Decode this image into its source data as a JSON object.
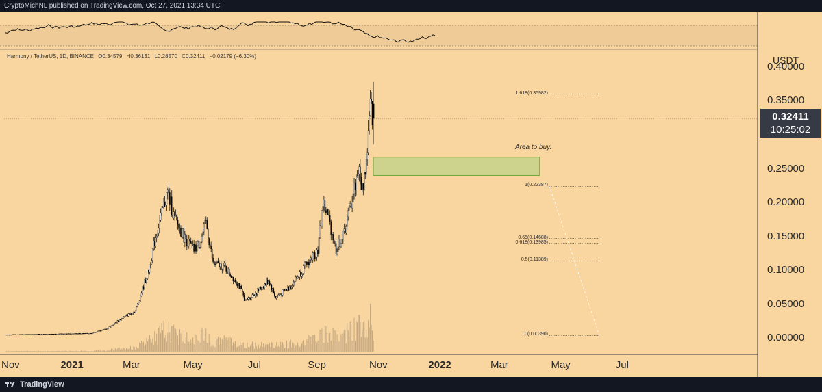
{
  "header": {
    "publisher_text": "CryptoMichNL published on TradingView.com, Oct 27, 2021 13:34 UTC"
  },
  "footer": {
    "brand": "TradingView"
  },
  "legend": {
    "symbol": "Harmony / TetherUS, 1D, BINANCE",
    "open": "O0.34579",
    "high": "H0.36131",
    "low": "L0.28570",
    "close": "C0.32411",
    "change": "−0.02179 (−6.30%)"
  },
  "price_box": {
    "price": "0.32411",
    "countdown": "10:25:02"
  },
  "annotation": {
    "area_label": "Area to buy."
  },
  "colors": {
    "background": "#f9d6a0",
    "candle": "#000000",
    "zone_fill": "#cdd28c",
    "zone_border": "#6aa83a",
    "frame": "#131722"
  },
  "chart_data": {
    "type": "candlestick",
    "symbol": "Harmony / TetherUS",
    "interval": "1D",
    "exchange": "BINANCE",
    "ylabel": "USDT",
    "ylim": [
      -0.02,
      0.405
    ],
    "yticks": [
      "0.40000",
      "0.35000",
      "0.25000",
      "0.20000",
      "0.15000",
      "0.10000",
      "0.05000",
      "0.00000"
    ],
    "ytick_values": [
      0.4,
      0.35,
      0.25,
      0.2,
      0.15,
      0.1,
      0.05,
      0.0
    ],
    "xticks": [
      {
        "label": "Nov",
        "date": "2020-11-01"
      },
      {
        "label": "2021",
        "date": "2021-01-01",
        "bold": true
      },
      {
        "label": "Mar",
        "date": "2021-03-01"
      },
      {
        "label": "May",
        "date": "2021-05-01"
      },
      {
        "label": "Jul",
        "date": "2021-07-01"
      },
      {
        "label": "Sep",
        "date": "2021-09-01"
      },
      {
        "label": "Nov",
        "date": "2021-11-01"
      },
      {
        "label": "2022",
        "date": "2022-01-01",
        "bold": true
      },
      {
        "label": "Mar",
        "date": "2022-03-01"
      },
      {
        "label": "May",
        "date": "2022-05-01"
      },
      {
        "label": "Jul",
        "date": "2022-07-01"
      }
    ],
    "price_path": [
      {
        "date": "2020-10-28",
        "close": 0.005
      },
      {
        "date": "2020-12-15",
        "close": 0.006
      },
      {
        "date": "2021-01-20",
        "close": 0.007
      },
      {
        "date": "2021-02-05",
        "close": 0.014
      },
      {
        "date": "2021-02-20",
        "close": 0.03
      },
      {
        "date": "2021-03-05",
        "close": 0.04
      },
      {
        "date": "2021-03-18",
        "close": 0.1
      },
      {
        "date": "2021-03-25",
        "close": 0.15
      },
      {
        "date": "2021-04-03",
        "close": 0.2
      },
      {
        "date": "2021-04-06",
        "close": 0.215
      },
      {
        "date": "2021-04-13",
        "close": 0.175
      },
      {
        "date": "2021-04-22",
        "close": 0.15
      },
      {
        "date": "2021-05-02",
        "close": 0.13
      },
      {
        "date": "2021-05-08",
        "close": 0.14
      },
      {
        "date": "2021-05-14",
        "close": 0.17
      },
      {
        "date": "2021-05-21",
        "close": 0.11
      },
      {
        "date": "2021-06-01",
        "close": 0.105
      },
      {
        "date": "2021-06-15",
        "close": 0.08
      },
      {
        "date": "2021-06-22",
        "close": 0.055
      },
      {
        "date": "2021-07-05",
        "close": 0.07
      },
      {
        "date": "2021-07-15",
        "close": 0.085
      },
      {
        "date": "2021-07-22",
        "close": 0.06
      },
      {
        "date": "2021-08-05",
        "close": 0.075
      },
      {
        "date": "2021-08-20",
        "close": 0.105
      },
      {
        "date": "2021-09-02",
        "close": 0.13
      },
      {
        "date": "2021-09-07",
        "close": 0.2
      },
      {
        "date": "2021-09-12",
        "close": 0.18
      },
      {
        "date": "2021-09-20",
        "close": 0.13
      },
      {
        "date": "2021-09-27",
        "close": 0.15
      },
      {
        "date": "2021-10-05",
        "close": 0.2
      },
      {
        "date": "2021-10-12",
        "close": 0.25
      },
      {
        "date": "2021-10-16",
        "close": 0.22
      },
      {
        "date": "2021-10-20",
        "close": 0.26
      },
      {
        "date": "2021-10-24",
        "close": 0.34
      },
      {
        "date": "2021-10-27",
        "close": 0.32411
      }
    ],
    "last_candle": {
      "date": "2021-10-27",
      "open": 0.34579,
      "high": 0.36131,
      "low": 0.2857,
      "close": 0.32411
    },
    "buy_zone": {
      "label": "Area to buy.",
      "date_start": "2021-10-27",
      "date_end": "2022-04-10",
      "price_low": 0.24,
      "price_high": 0.267
    },
    "fibonacci": [
      {
        "label": "1.618(0.35982)",
        "value": 0.35982
      },
      {
        "label": "1(0.22387)",
        "value": 0.22387
      },
      {
        "label": "0.65(0.14688)",
        "value": 0.14688
      },
      {
        "label": "0.618(0.13985)",
        "value": 0.13985
      },
      {
        "label": "0.5(0.11389)",
        "value": 0.11389
      },
      {
        "label": "0(0.00390)",
        "value": 0.0039
      }
    ]
  }
}
